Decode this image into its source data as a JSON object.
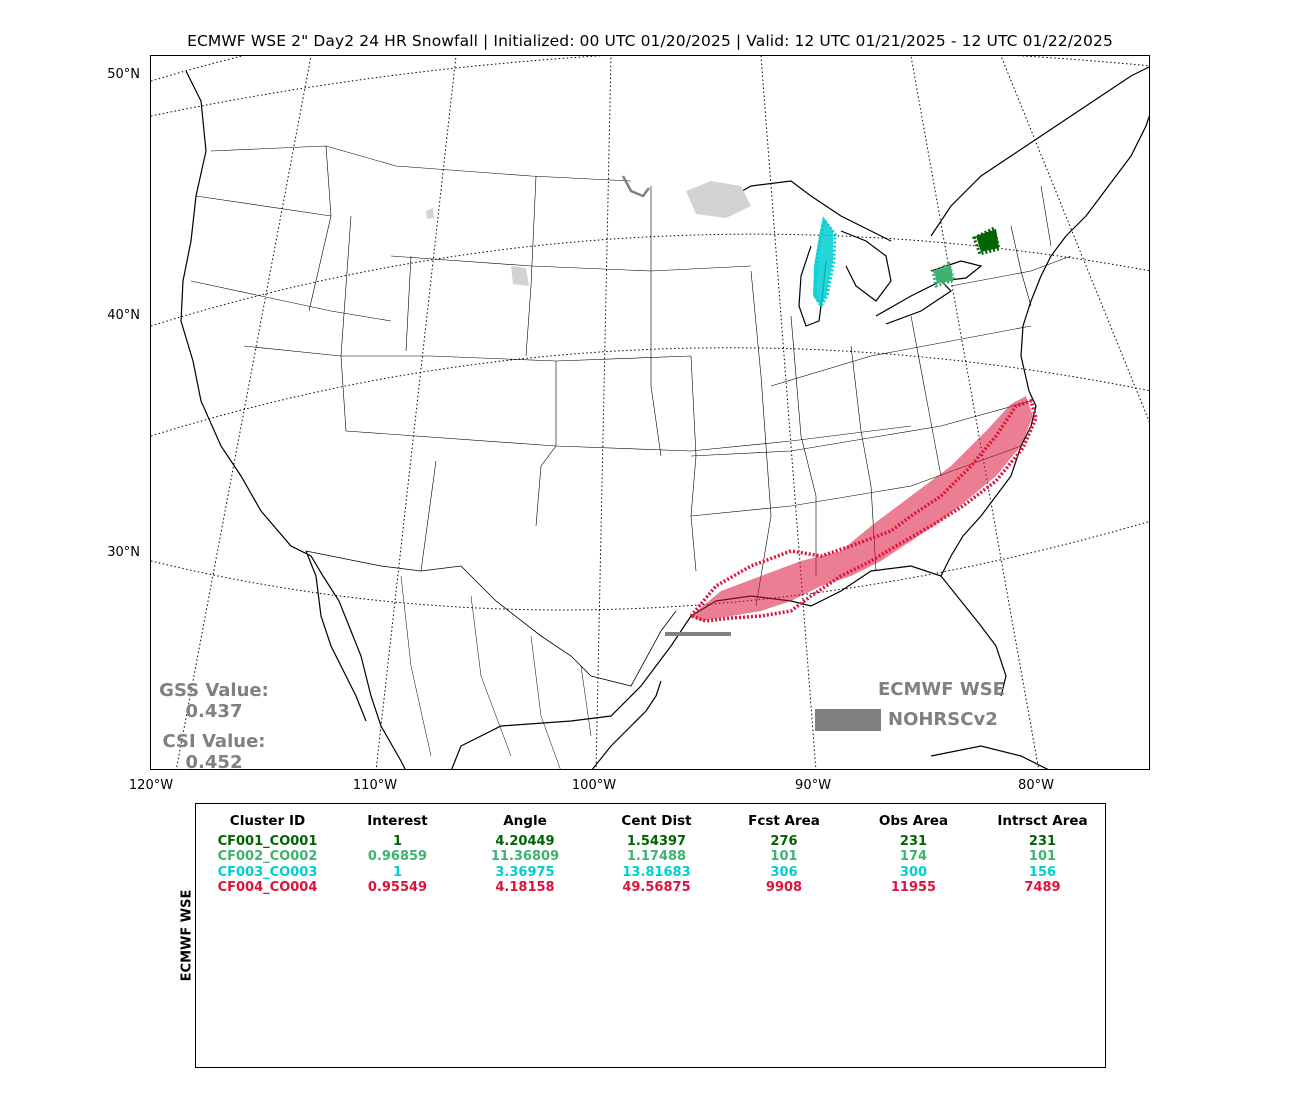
{
  "title": "ECMWF WSE 2\" Day2 24 HR Snowfall | Initialized: 00 UTC 01/20/2025 | Valid: 12 UTC 01/21/2025 - 12 UTC 01/22/2025",
  "map": {
    "lat_labels": [
      "50°N",
      "40°N",
      "30°N"
    ],
    "lon_labels": [
      "120°W",
      "110°W",
      "100°W",
      "90°W",
      "80°W"
    ],
    "colors": {
      "cluster1": "#006400",
      "cluster2": "#3cb371",
      "cluster3": "#00ced1",
      "cluster4": "#dc143c",
      "obs_fill": "#d3d3d3",
      "fcst_line": "#808080"
    }
  },
  "scores": {
    "gss_label": "GSS Value:",
    "gss_value": "0.437",
    "csi_label": "CSI Value:",
    "csi_value": "0.452"
  },
  "legend": {
    "line_label": "ECMWF WSE",
    "fill_label": "NOHRSCv2"
  },
  "table": {
    "side_label": "ECMWF WSE",
    "headers": [
      "Cluster ID",
      "Interest",
      "Angle",
      "Cent Dist",
      "Fcst Area",
      "Obs Area",
      "Intrsct Area"
    ],
    "rows": [
      {
        "color": "#006400",
        "cells": [
          "CF001_CO001",
          "1",
          "4.20449",
          "1.54397",
          "276",
          "231",
          "231"
        ]
      },
      {
        "color": "#3cb371",
        "cells": [
          "CF002_CO002",
          "0.96859",
          "11.36809",
          "1.17488",
          "101",
          "174",
          "101"
        ]
      },
      {
        "color": "#00ced1",
        "cells": [
          "CF003_CO003",
          "1",
          "3.36975",
          "13.81683",
          "306",
          "300",
          "156"
        ]
      },
      {
        "color": "#dc143c",
        "cells": [
          "CF004_CO004",
          "0.95549",
          "4.18158",
          "49.56875",
          "9908",
          "11955",
          "7489"
        ]
      }
    ]
  }
}
